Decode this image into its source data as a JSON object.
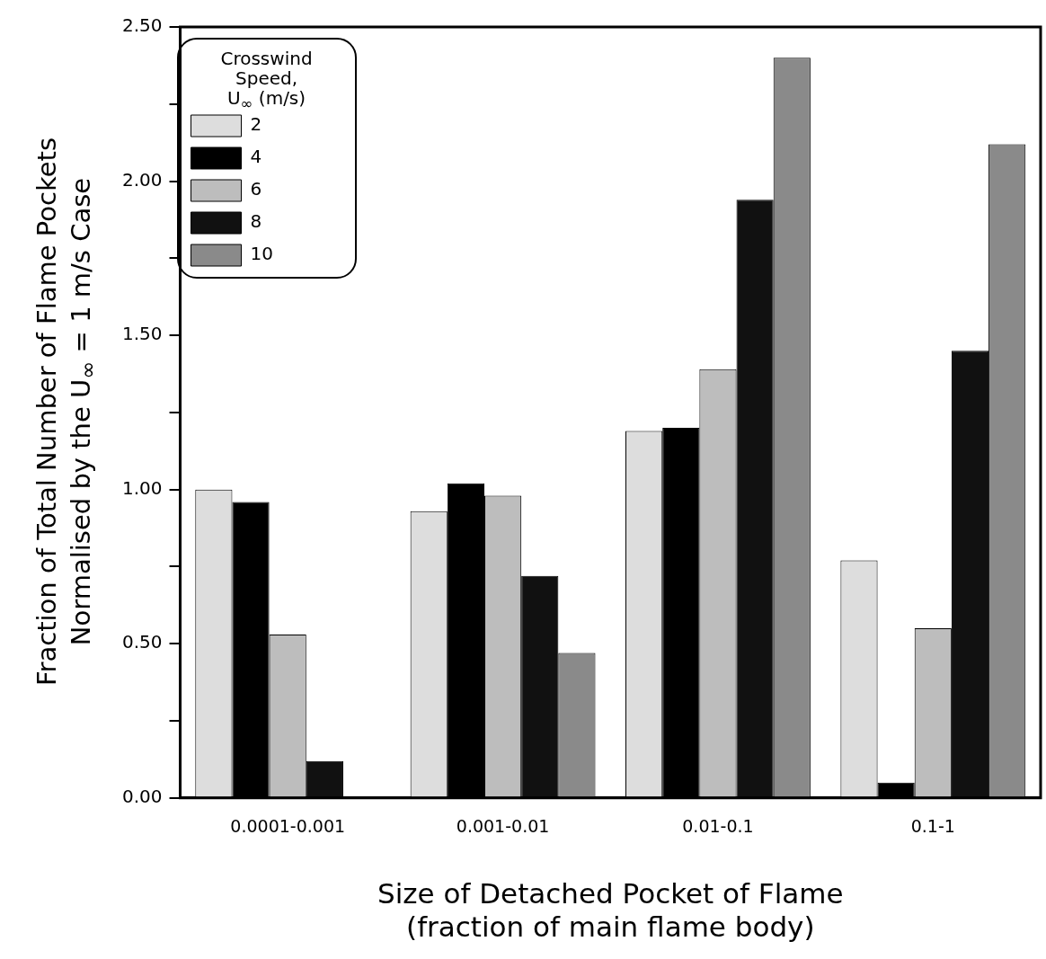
{
  "chart_data": {
    "type": "bar",
    "xlabel": "Size of Detached Pocket of Flame\n(fraction of main flame body)",
    "ylabel": "Fraction of Total Number of Flame Pockets\nNormalised by the U$_{∞}$ = 1 m/s Case",
    "legend_title": "Crosswind\nSpeed,\nU$_{∞}$ (m/s)",
    "legend": "top left",
    "categories": [
      "0.0001-0.001",
      "0.001-0.01",
      "0.01-0.1",
      "0.1-1"
    ],
    "series": [
      {
        "name": "2",
        "color": "#dddddd",
        "values": [
          1.0,
          0.93,
          1.19,
          0.77
        ]
      },
      {
        "name": "4",
        "color": "#000000",
        "values": [
          0.96,
          1.02,
          1.2,
          0.05
        ]
      },
      {
        "name": "6",
        "color": "#bdbdbd",
        "values": [
          0.53,
          0.98,
          1.39,
          0.55
        ]
      },
      {
        "name": "8",
        "color": "#111111",
        "values": [
          0.12,
          0.72,
          1.94,
          1.45
        ]
      },
      {
        "name": "10",
        "color": "#8a8a8a",
        "values": [
          null,
          0.47,
          2.4,
          2.12
        ]
      }
    ],
    "ylim": [
      0,
      2.5
    ],
    "yticks": [
      {
        "value": 0,
        "label": "0.00"
      },
      {
        "value": 0.25,
        "label": null
      },
      {
        "value": 0.5,
        "label": "0.50"
      },
      {
        "value": 0.75,
        "label": null
      },
      {
        "value": 1,
        "label": "1.00"
      },
      {
        "value": 1.25,
        "label": null
      },
      {
        "value": 1.5,
        "label": "1.50"
      },
      {
        "value": 1.75,
        "label": null
      },
      {
        "value": 2,
        "label": "2.00"
      },
      {
        "value": 2.25,
        "label": null
      },
      {
        "value": 2.5,
        "label": "2.50"
      }
    ],
    "grid": false
  }
}
